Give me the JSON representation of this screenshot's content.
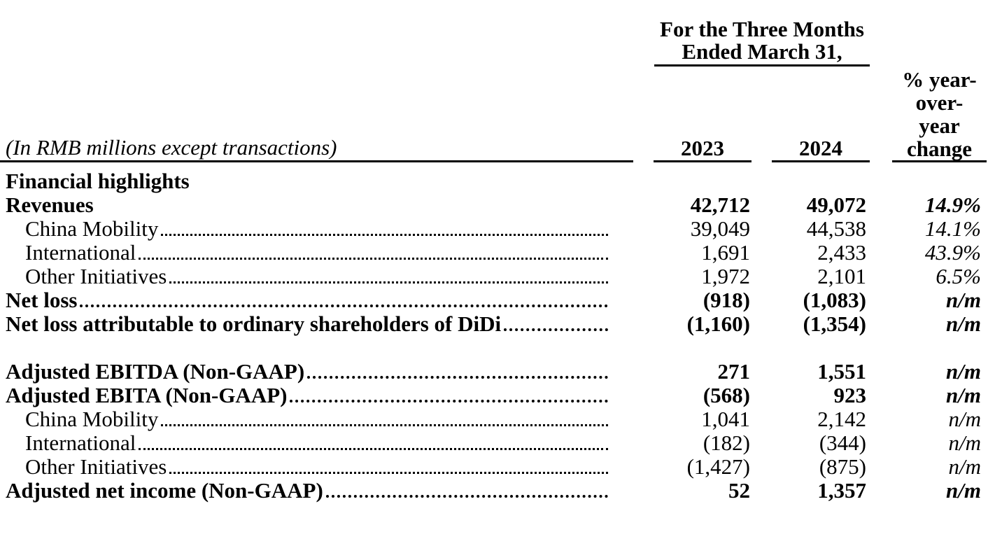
{
  "table": {
    "units_note": "(In RMB millions except transactions)",
    "period_header": {
      "line1": "For the Three Months",
      "line2": "Ended March 31,"
    },
    "columns": [
      "2023",
      "2024"
    ],
    "pct_header": [
      "% year-",
      "over-",
      "year",
      "change"
    ],
    "colors": {
      "text": "#000000",
      "background": "#ffffff",
      "rules": "#000000"
    },
    "rows": [
      {
        "label": "Financial highlights",
        "emphasis": "bold",
        "indent": false,
        "leader": false,
        "v2023": "",
        "v2024": "",
        "pct": ""
      },
      {
        "label": "Revenues",
        "emphasis": "bold",
        "indent": false,
        "leader": false,
        "v2023": "42,712",
        "v2024": "49,072",
        "pct": "14.9%"
      },
      {
        "label": "China Mobility",
        "emphasis": "normal",
        "indent": true,
        "leader": true,
        "v2023": "39,049",
        "v2024": "44,538",
        "pct": "14.1%"
      },
      {
        "label": "International",
        "emphasis": "normal",
        "indent": true,
        "leader": true,
        "v2023": "1,691",
        "v2024": "2,433",
        "pct": "43.9%"
      },
      {
        "label": "Other Initiatives",
        "emphasis": "normal",
        "indent": true,
        "leader": true,
        "v2023": "1,972",
        "v2024": "2,101",
        "pct": "6.5%"
      },
      {
        "label": "Net loss",
        "emphasis": "bold",
        "indent": false,
        "leader": true,
        "v2023": "(918)",
        "v2024": "(1,083)",
        "pct": "n/m"
      },
      {
        "label": "Net loss attributable to ordinary shareholders of DiDi",
        "emphasis": "bold",
        "indent": false,
        "leader": true,
        "v2023": "(1,160)",
        "v2024": "(1,354)",
        "pct": "n/m"
      },
      {
        "spacer": true
      },
      {
        "label": "Adjusted EBITDA (Non-GAAP)",
        "emphasis": "bold",
        "indent": false,
        "leader": true,
        "v2023": "271",
        "v2024": "1,551",
        "pct": "n/m"
      },
      {
        "label": "Adjusted EBITA (Non-GAAP)",
        "emphasis": "bold",
        "indent": false,
        "leader": true,
        "v2023": "(568)",
        "v2024": "923",
        "pct": "n/m"
      },
      {
        "label": "China Mobility",
        "emphasis": "normal",
        "indent": true,
        "leader": true,
        "v2023": "1,041",
        "v2024": "2,142",
        "pct": "n/m"
      },
      {
        "label": "International",
        "emphasis": "normal",
        "indent": true,
        "leader": true,
        "v2023": "(182)",
        "v2024": "(344)",
        "pct": "n/m"
      },
      {
        "label": "Other Initiatives",
        "emphasis": "normal",
        "indent": true,
        "leader": true,
        "v2023": "(1,427)",
        "v2024": "(875)",
        "pct": "n/m"
      },
      {
        "label": "Adjusted net income (Non-GAAP)",
        "emphasis": "bold",
        "indent": false,
        "leader": true,
        "v2023": "52",
        "v2024": "1,357",
        "pct": "n/m"
      }
    ]
  }
}
